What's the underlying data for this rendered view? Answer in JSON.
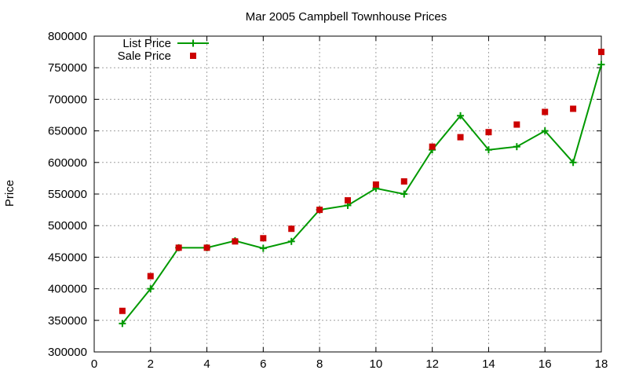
{
  "chart_data": {
    "type": "line",
    "title": "Mar 2005 Campbell Townhouse Prices",
    "xlabel": "",
    "ylabel": "Price",
    "xlim": [
      0,
      18
    ],
    "ylim": [
      300000,
      800000
    ],
    "xticks": [
      0,
      2,
      4,
      6,
      8,
      10,
      12,
      14,
      16,
      18
    ],
    "yticks": [
      300000,
      350000,
      400000,
      450000,
      500000,
      550000,
      600000,
      650000,
      700000,
      750000,
      800000
    ],
    "grid": true,
    "legend_position": "top-left",
    "x": [
      1,
      2,
      3,
      4,
      5,
      6,
      7,
      8,
      9,
      10,
      11,
      12,
      13,
      14,
      15,
      16,
      17,
      18
    ],
    "series": [
      {
        "name": "List Price",
        "style": "line-points",
        "color": "#009900",
        "values": [
          345000,
          400000,
          465000,
          465000,
          476000,
          464000,
          475000,
          525000,
          532000,
          559000,
          550000,
          620000,
          674000,
          620000,
          625000,
          650000,
          600000,
          755000
        ]
      },
      {
        "name": "Sale Price",
        "style": "points",
        "color": "#cc0000",
        "values": [
          365000,
          420000,
          465000,
          465000,
          475000,
          480000,
          495000,
          525000,
          540000,
          565000,
          570000,
          625000,
          640000,
          648000,
          660000,
          680000,
          685000,
          775000
        ]
      }
    ]
  }
}
